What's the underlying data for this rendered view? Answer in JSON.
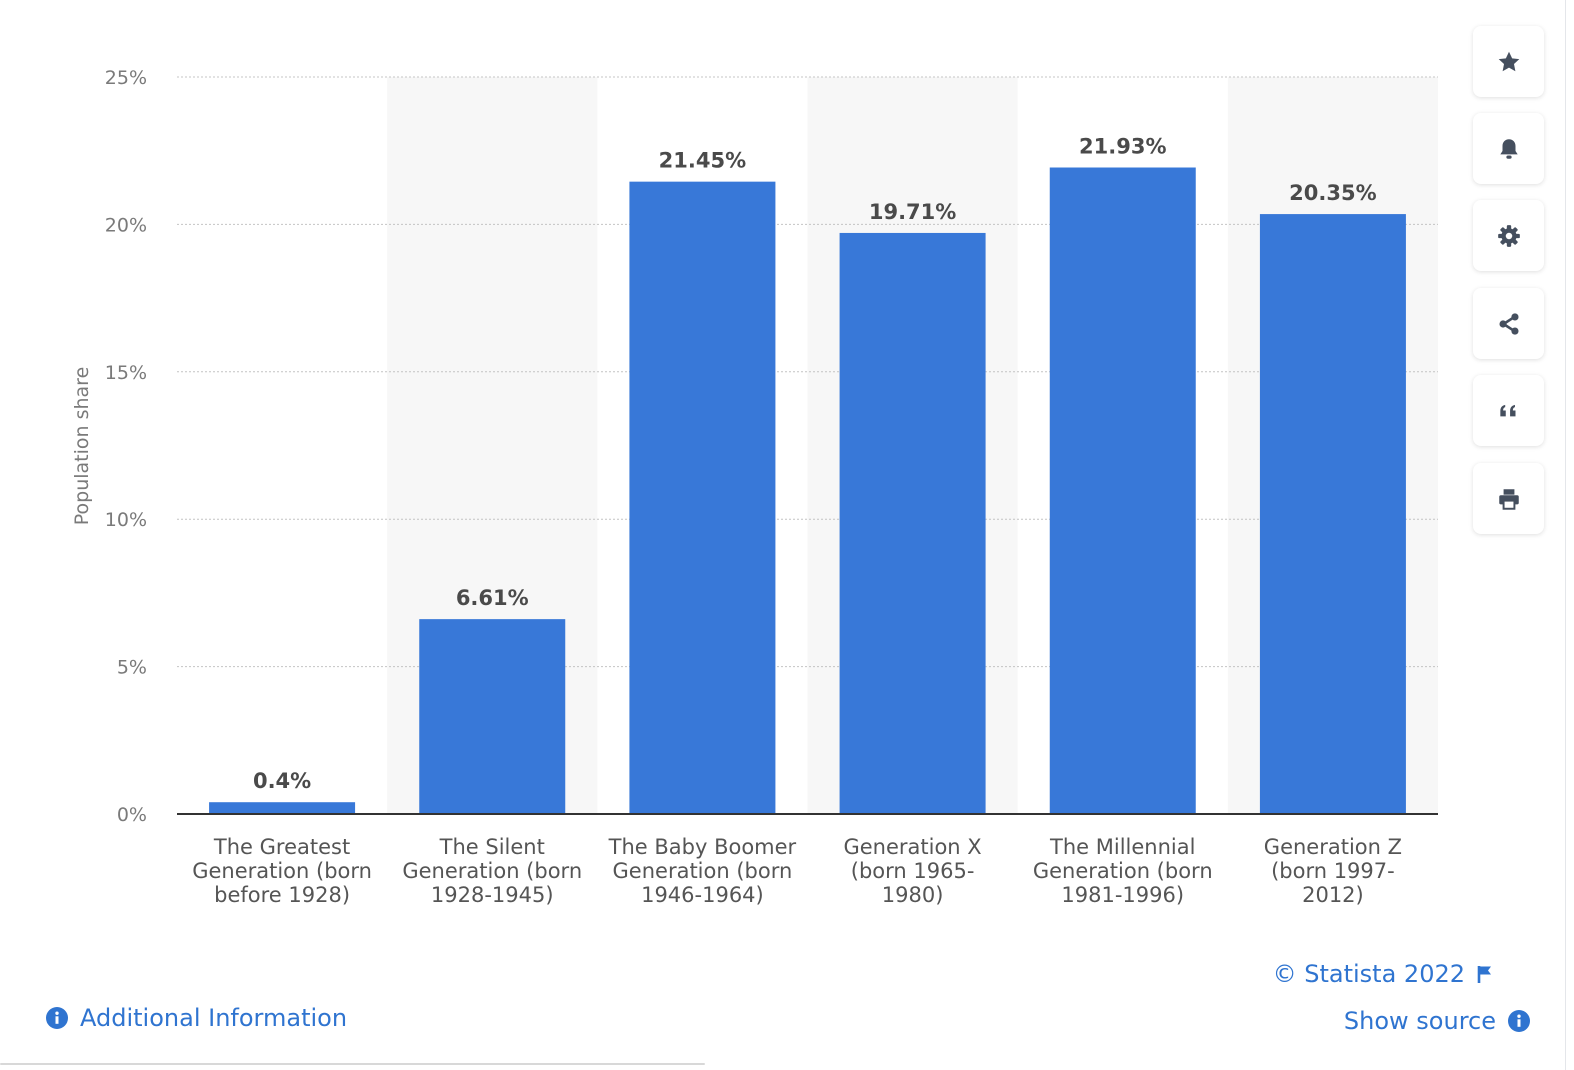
{
  "chart_data": {
    "type": "bar",
    "categories": [
      [
        "The Greatest",
        "Generation (born",
        "before 1928)"
      ],
      [
        "The Silent",
        "Generation (born",
        "1928-1945)"
      ],
      [
        "The Baby Boomer",
        "Generation (born",
        "1946-1964)"
      ],
      [
        "Generation X",
        "(born 1965-",
        "1980)"
      ],
      [
        "The Millennial",
        "Generation (born",
        "1981-1996)"
      ],
      [
        "Generation Z",
        "(born 1997-",
        "2012)"
      ]
    ],
    "values": [
      0.4,
      6.61,
      21.45,
      19.71,
      21.93,
      20.35
    ],
    "value_labels": [
      "0.4%",
      "6.61%",
      "21.45%",
      "19.71%",
      "21.93%",
      "20.35%"
    ],
    "ylabel": "Population share",
    "ylim": [
      0,
      25
    ],
    "yticks": [
      0,
      5,
      10,
      15,
      20,
      25
    ],
    "ytick_labels": [
      "0%",
      "5%",
      "10%",
      "15%",
      "20%",
      "25%"
    ],
    "grid": true,
    "alternating_column_shading": true,
    "bar_color": "#3878d8"
  },
  "toolbar": [
    {
      "name": "favorite-button",
      "icon": "star-icon"
    },
    {
      "name": "notification-button",
      "icon": "bell-icon"
    },
    {
      "name": "settings-button",
      "icon": "gear-icon"
    },
    {
      "name": "share-button",
      "icon": "share-icon"
    },
    {
      "name": "cite-button",
      "icon": "quote-icon"
    },
    {
      "name": "print-button",
      "icon": "print-icon"
    }
  ],
  "footer": {
    "copyright": "© Statista 2022",
    "show_source": "Show source",
    "additional_info": "Additional Information",
    "link_color": "#2f74d0"
  }
}
